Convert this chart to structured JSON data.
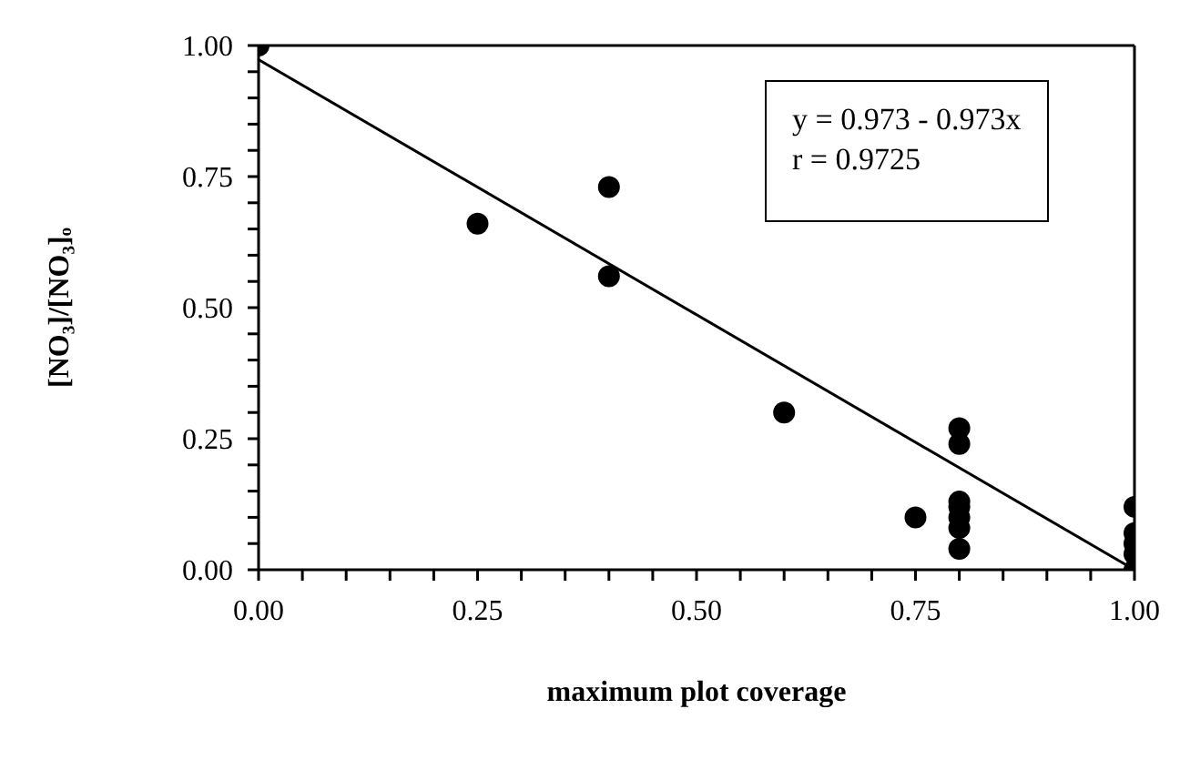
{
  "chart_data": {
    "type": "scatter",
    "xlabel": "maximum plot coverage",
    "ylabel": "[NO₃]/[NO₃]ₒ",
    "xlim": [
      0,
      1
    ],
    "ylim": [
      0,
      1
    ],
    "xticks": [
      {
        "value": 0,
        "label": "0.00"
      },
      {
        "value": 0.05,
        "label": null
      },
      {
        "value": 0.1,
        "label": null
      },
      {
        "value": 0.15,
        "label": null
      },
      {
        "value": 0.2,
        "label": null
      },
      {
        "value": 0.25,
        "label": "0.25"
      },
      {
        "value": 0.3,
        "label": null
      },
      {
        "value": 0.35,
        "label": null
      },
      {
        "value": 0.4,
        "label": null
      },
      {
        "value": 0.45,
        "label": null
      },
      {
        "value": 0.5,
        "label": "0.50"
      },
      {
        "value": 0.55,
        "label": null
      },
      {
        "value": 0.6,
        "label": null
      },
      {
        "value": 0.65,
        "label": null
      },
      {
        "value": 0.7,
        "label": null
      },
      {
        "value": 0.75,
        "label": "0.75"
      },
      {
        "value": 0.8,
        "label": null
      },
      {
        "value": 0.85,
        "label": null
      },
      {
        "value": 0.9,
        "label": null
      },
      {
        "value": 0.95,
        "label": null
      },
      {
        "value": 1,
        "label": "1.00"
      }
    ],
    "yticks": [
      {
        "value": 0,
        "label": "0.00"
      },
      {
        "value": 0.05,
        "label": null
      },
      {
        "value": 0.1,
        "label": null
      },
      {
        "value": 0.15,
        "label": null
      },
      {
        "value": 0.2,
        "label": null
      },
      {
        "value": 0.25,
        "label": "0.25"
      },
      {
        "value": 0.3,
        "label": null
      },
      {
        "value": 0.35,
        "label": null
      },
      {
        "value": 0.4,
        "label": null
      },
      {
        "value": 0.45,
        "label": null
      },
      {
        "value": 0.5,
        "label": "0.50"
      },
      {
        "value": 0.55,
        "label": null
      },
      {
        "value": 0.6,
        "label": null
      },
      {
        "value": 0.65,
        "label": null
      },
      {
        "value": 0.7,
        "label": null
      },
      {
        "value": 0.75,
        "label": "0.75"
      },
      {
        "value": 0.8,
        "label": null
      },
      {
        "value": 0.85,
        "label": null
      },
      {
        "value": 0.9,
        "label": null
      },
      {
        "value": 0.95,
        "label": null
      },
      {
        "value": 1,
        "label": "1.00"
      }
    ],
    "marker": "circle",
    "annotations": [
      "y = 0.973 - 0.973x",
      "r = 0.9725"
    ],
    "series": [
      {
        "color": "#000000",
        "x": [
          0,
          0.25,
          0.4,
          0.4,
          0.6,
          0.75,
          0.8,
          0.8,
          0.8,
          0.8,
          0.8,
          0.8,
          0.8,
          1,
          1,
          1,
          1,
          1
        ],
        "values": [
          1,
          0.66,
          0.73,
          0.56,
          0.3,
          0.1,
          0.27,
          0.24,
          0.13,
          0.12,
          0.1,
          0.08,
          0.04,
          0.12,
          0.07,
          0.05,
          0.03,
          0
        ]
      },
      {
        "type": "line",
        "color": "#000000",
        "marker": "none",
        "x": [
          0,
          1
        ],
        "values": [
          0.973,
          0
        ]
      }
    ]
  }
}
